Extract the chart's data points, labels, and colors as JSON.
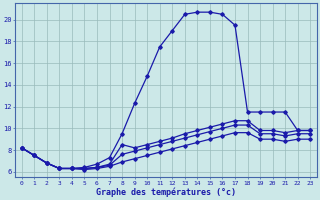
{
  "xlabel": "Graphe des températures (°c)",
  "x": [
    0,
    1,
    2,
    3,
    4,
    5,
    6,
    7,
    8,
    9,
    10,
    11,
    12,
    13,
    14,
    15,
    16,
    17,
    18,
    19,
    20,
    21,
    22,
    23
  ],
  "main": [
    8.2,
    7.5,
    6.8,
    6.3,
    6.3,
    6.4,
    6.7,
    7.3,
    9.5,
    12.3,
    14.8,
    17.5,
    19.0,
    20.5,
    20.7,
    20.7,
    20.5,
    19.5,
    11.5,
    11.5,
    11.5,
    11.5,
    9.8,
    9.8
  ],
  "flat1": [
    8.2,
    7.5,
    6.8,
    6.3,
    6.3,
    6.3,
    6.4,
    6.7,
    8.5,
    8.2,
    8.5,
    8.8,
    9.1,
    9.5,
    9.8,
    10.1,
    10.4,
    10.7,
    10.7,
    9.8,
    9.8,
    9.6,
    9.8,
    9.8
  ],
  "flat2": [
    8.2,
    7.5,
    6.8,
    6.3,
    6.3,
    6.3,
    6.4,
    6.6,
    7.6,
    7.9,
    8.2,
    8.5,
    8.8,
    9.1,
    9.4,
    9.7,
    10.0,
    10.3,
    10.3,
    9.5,
    9.5,
    9.3,
    9.5,
    9.5
  ],
  "flat3": [
    8.2,
    7.5,
    6.8,
    6.3,
    6.3,
    6.2,
    6.3,
    6.5,
    6.9,
    7.2,
    7.5,
    7.8,
    8.1,
    8.4,
    8.7,
    9.0,
    9.3,
    9.6,
    9.6,
    9.0,
    9.0,
    8.8,
    9.0,
    9.0
  ],
  "bg_color": "#cce8e8",
  "line_color": "#1a1aaa",
  "grid_color": "#99bbbb",
  "ylim": [
    5.5,
    21.5
  ],
  "xlim": [
    -0.5,
    23.5
  ],
  "yticks": [
    6,
    8,
    10,
    12,
    14,
    16,
    18,
    20
  ],
  "xticks": [
    0,
    1,
    2,
    3,
    4,
    5,
    6,
    7,
    8,
    9,
    10,
    11,
    12,
    13,
    14,
    15,
    16,
    17,
    18,
    19,
    20,
    21,
    22,
    23
  ]
}
